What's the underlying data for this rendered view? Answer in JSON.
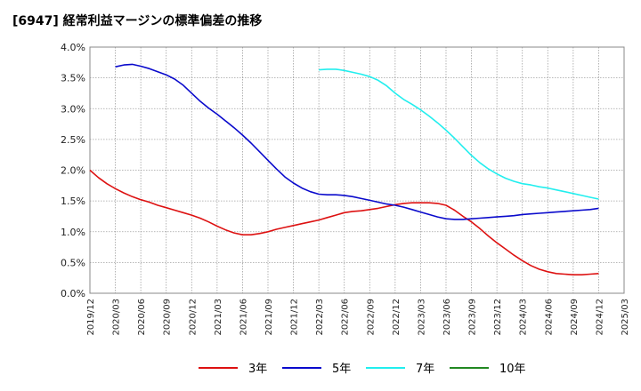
{
  "title": "[6947]  経常利益マージンの標準偏差の推移",
  "chart_data": {
    "type": "line",
    "title": "[6947]  経常利益マージンの標準偏差の推移",
    "xlabel": "",
    "ylabel": "",
    "ylim": [
      0,
      4.0
    ],
    "y_ticks": [
      "0.0%",
      "0.5%",
      "1.0%",
      "1.5%",
      "2.0%",
      "2.5%",
      "3.0%",
      "3.5%",
      "4.0%"
    ],
    "x_ticks": [
      "2019/12",
      "2020/03",
      "2020/06",
      "2020/09",
      "2020/12",
      "2021/03",
      "2021/06",
      "2021/09",
      "2021/12",
      "2022/03",
      "2022/06",
      "2022/09",
      "2022/12",
      "2023/03",
      "2023/06",
      "2023/09",
      "2023/12",
      "2024/03",
      "2024/06",
      "2024/09",
      "2024/12",
      "2025/03"
    ],
    "grid": true,
    "legend_position": "bottom",
    "series": [
      {
        "name": "3年",
        "color": "#dd1111",
        "points": [
          [
            "2019/12",
            2.0
          ],
          [
            "2020/01",
            1.88
          ],
          [
            "2020/02",
            1.78
          ],
          [
            "2020/03",
            1.7
          ],
          [
            "2020/04",
            1.63
          ],
          [
            "2020/05",
            1.57
          ],
          [
            "2020/06",
            1.52
          ],
          [
            "2020/07",
            1.48
          ],
          [
            "2020/08",
            1.43
          ],
          [
            "2020/09",
            1.39
          ],
          [
            "2020/10",
            1.35
          ],
          [
            "2020/11",
            1.31
          ],
          [
            "2020/12",
            1.27
          ],
          [
            "2021/01",
            1.22
          ],
          [
            "2021/02",
            1.16
          ],
          [
            "2021/03",
            1.09
          ],
          [
            "2021/04",
            1.03
          ],
          [
            "2021/05",
            0.98
          ],
          [
            "2021/06",
            0.95
          ],
          [
            "2021/07",
            0.95
          ],
          [
            "2021/08",
            0.97
          ],
          [
            "2021/09",
            1.0
          ],
          [
            "2021/10",
            1.04
          ],
          [
            "2021/11",
            1.07
          ],
          [
            "2021/12",
            1.1
          ],
          [
            "2022/01",
            1.13
          ],
          [
            "2022/02",
            1.16
          ],
          [
            "2022/03",
            1.19
          ],
          [
            "2022/04",
            1.23
          ],
          [
            "2022/05",
            1.27
          ],
          [
            "2022/06",
            1.31
          ],
          [
            "2022/07",
            1.33
          ],
          [
            "2022/08",
            1.34
          ],
          [
            "2022/09",
            1.36
          ],
          [
            "2022/10",
            1.38
          ],
          [
            "2022/11",
            1.41
          ],
          [
            "2022/12",
            1.44
          ],
          [
            "2023/01",
            1.46
          ],
          [
            "2023/02",
            1.47
          ],
          [
            "2023/03",
            1.47
          ],
          [
            "2023/04",
            1.47
          ],
          [
            "2023/05",
            1.46
          ],
          [
            "2023/06",
            1.43
          ],
          [
            "2023/07",
            1.35
          ],
          [
            "2023/08",
            1.25
          ],
          [
            "2023/09",
            1.16
          ],
          [
            "2023/10",
            1.05
          ],
          [
            "2023/11",
            0.93
          ],
          [
            "2023/12",
            0.82
          ],
          [
            "2024/01",
            0.72
          ],
          [
            "2024/02",
            0.62
          ],
          [
            "2024/03",
            0.53
          ],
          [
            "2024/04",
            0.45
          ],
          [
            "2024/05",
            0.39
          ],
          [
            "2024/06",
            0.35
          ],
          [
            "2024/07",
            0.32
          ],
          [
            "2024/08",
            0.31
          ],
          [
            "2024/09",
            0.3
          ],
          [
            "2024/10",
            0.3
          ],
          [
            "2024/11",
            0.31
          ],
          [
            "2024/12",
            0.32
          ]
        ]
      },
      {
        "name": "5年",
        "color": "#0a0acc",
        "points": [
          [
            "2020/03",
            3.68
          ],
          [
            "2020/04",
            3.71
          ],
          [
            "2020/05",
            3.72
          ],
          [
            "2020/06",
            3.69
          ],
          [
            "2020/07",
            3.65
          ],
          [
            "2020/08",
            3.6
          ],
          [
            "2020/09",
            3.55
          ],
          [
            "2020/10",
            3.48
          ],
          [
            "2020/11",
            3.38
          ],
          [
            "2020/12",
            3.25
          ],
          [
            "2021/01",
            3.12
          ],
          [
            "2021/02",
            3.01
          ],
          [
            "2021/03",
            2.91
          ],
          [
            "2021/04",
            2.8
          ],
          [
            "2021/05",
            2.69
          ],
          [
            "2021/06",
            2.57
          ],
          [
            "2021/07",
            2.44
          ],
          [
            "2021/08",
            2.3
          ],
          [
            "2021/09",
            2.16
          ],
          [
            "2021/10",
            2.02
          ],
          [
            "2021/11",
            1.89
          ],
          [
            "2021/12",
            1.79
          ],
          [
            "2022/01",
            1.71
          ],
          [
            "2022/02",
            1.65
          ],
          [
            "2022/03",
            1.61
          ],
          [
            "2022/04",
            1.6
          ],
          [
            "2022/05",
            1.6
          ],
          [
            "2022/06",
            1.59
          ],
          [
            "2022/07",
            1.57
          ],
          [
            "2022/08",
            1.54
          ],
          [
            "2022/09",
            1.51
          ],
          [
            "2022/10",
            1.48
          ],
          [
            "2022/11",
            1.45
          ],
          [
            "2022/12",
            1.43
          ],
          [
            "2023/01",
            1.4
          ],
          [
            "2023/02",
            1.36
          ],
          [
            "2023/03",
            1.32
          ],
          [
            "2023/04",
            1.28
          ],
          [
            "2023/05",
            1.24
          ],
          [
            "2023/06",
            1.21
          ],
          [
            "2023/07",
            1.2
          ],
          [
            "2023/08",
            1.2
          ],
          [
            "2023/09",
            1.21
          ],
          [
            "2023/10",
            1.22
          ],
          [
            "2023/11",
            1.23
          ],
          [
            "2023/12",
            1.24
          ],
          [
            "2024/01",
            1.25
          ],
          [
            "2024/02",
            1.26
          ],
          [
            "2024/03",
            1.28
          ],
          [
            "2024/04",
            1.29
          ],
          [
            "2024/05",
            1.3
          ],
          [
            "2024/06",
            1.31
          ],
          [
            "2024/07",
            1.32
          ],
          [
            "2024/08",
            1.33
          ],
          [
            "2024/09",
            1.34
          ],
          [
            "2024/10",
            1.35
          ],
          [
            "2024/11",
            1.36
          ],
          [
            "2024/12",
            1.38
          ]
        ]
      },
      {
        "name": "7年",
        "color": "#22eeee",
        "points": [
          [
            "2022/03",
            3.63
          ],
          [
            "2022/04",
            3.64
          ],
          [
            "2022/05",
            3.64
          ],
          [
            "2022/06",
            3.62
          ],
          [
            "2022/07",
            3.59
          ],
          [
            "2022/08",
            3.56
          ],
          [
            "2022/09",
            3.52
          ],
          [
            "2022/10",
            3.46
          ],
          [
            "2022/11",
            3.37
          ],
          [
            "2022/12",
            3.25
          ],
          [
            "2023/01",
            3.15
          ],
          [
            "2023/02",
            3.07
          ],
          [
            "2023/03",
            2.98
          ],
          [
            "2023/04",
            2.88
          ],
          [
            "2023/05",
            2.77
          ],
          [
            "2023/06",
            2.65
          ],
          [
            "2023/07",
            2.52
          ],
          [
            "2023/08",
            2.38
          ],
          [
            "2023/09",
            2.24
          ],
          [
            "2023/10",
            2.12
          ],
          [
            "2023/11",
            2.02
          ],
          [
            "2023/12",
            1.94
          ],
          [
            "2024/01",
            1.87
          ],
          [
            "2024/02",
            1.82
          ],
          [
            "2024/03",
            1.78
          ],
          [
            "2024/04",
            1.76
          ],
          [
            "2024/05",
            1.73
          ],
          [
            "2024/06",
            1.71
          ],
          [
            "2024/07",
            1.68
          ],
          [
            "2024/08",
            1.65
          ],
          [
            "2024/09",
            1.62
          ],
          [
            "2024/10",
            1.59
          ],
          [
            "2024/11",
            1.56
          ],
          [
            "2024/12",
            1.53
          ]
        ]
      },
      {
        "name": "10年",
        "color": "#228822",
        "points": []
      }
    ]
  }
}
